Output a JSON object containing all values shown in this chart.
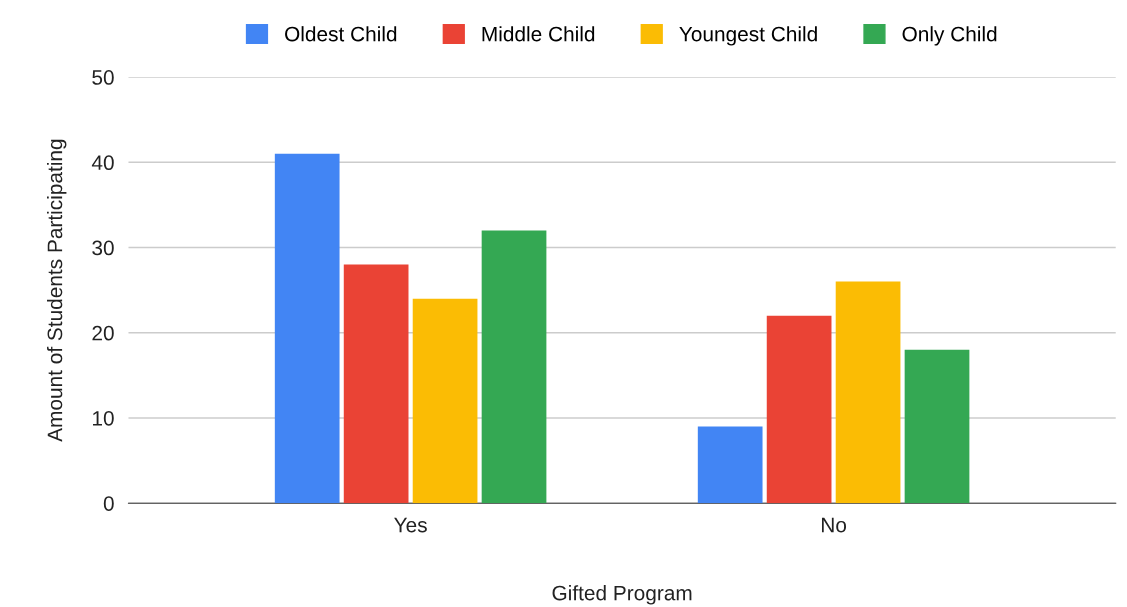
{
  "chart_data": {
    "type": "bar",
    "xlabel": "Gifted Program",
    "ylabel": "Amount of Students Participating",
    "categories": [
      "Yes",
      "No"
    ],
    "series": [
      {
        "name": "Oldest Child",
        "color": "#4285f4",
        "values": [
          41,
          9
        ]
      },
      {
        "name": "Middle Child",
        "color": "#ea4335",
        "values": [
          28,
          22
        ]
      },
      {
        "name": "Youngest Child",
        "color": "#fbbc04",
        "values": [
          24,
          26
        ]
      },
      {
        "name": "Only Child",
        "color": "#34a853",
        "values": [
          32,
          18
        ]
      }
    ],
    "ylim": [
      0,
      50
    ],
    "yticks": [
      0,
      10,
      20,
      30,
      40,
      50
    ],
    "grid": "y",
    "legend": "top"
  }
}
